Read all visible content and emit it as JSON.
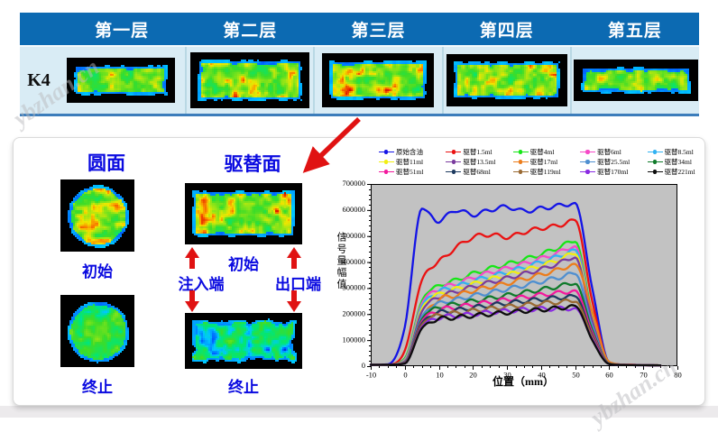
{
  "watermark": "ybzhan.cn",
  "table": {
    "row_label": "K4",
    "headers": [
      "第一层",
      "第二层",
      "第三层",
      "第四层",
      "第五层"
    ],
    "header_bg": "#0c6ab2",
    "body_bg": "#d9ecf5"
  },
  "panel": {
    "left": {
      "title": "圆面",
      "labels": [
        "初始",
        "终止"
      ]
    },
    "middle": {
      "title": "驱替面",
      "labels": [
        "初始",
        "终止"
      ],
      "inlet": "注入端",
      "outlet": "出口端"
    }
  },
  "accent_colors": {
    "header_blue": "#0c6ab2",
    "label_blue": "#0a0ae0",
    "arrow_red": "#e01212"
  },
  "heatmaps": {
    "layers": [
      {
        "shape": "rect",
        "seed": 11,
        "palette": "oil",
        "red": 0.85,
        "ragged": 1.5
      },
      {
        "shape": "rect",
        "seed": 22,
        "palette": "oil",
        "red": 1.0,
        "ragged": 1.5
      },
      {
        "shape": "rect",
        "seed": 33,
        "palette": "oil",
        "red": 1.0,
        "ragged": 1.5
      },
      {
        "shape": "rect",
        "seed": 44,
        "palette": "oil",
        "red": 0.95,
        "ragged": 1.5
      },
      {
        "shape": "rect",
        "seed": 55,
        "palette": "oil",
        "red": 0.8,
        "ragged": 2.5
      }
    ],
    "circle_start": {
      "shape": "circle",
      "seed": 66,
      "palette": "oil",
      "red": 1.0,
      "ragged": 1.2
    },
    "circle_end": {
      "shape": "circle",
      "seed": 77,
      "palette": "mixed",
      "red": 0.3,
      "ragged": 1.2
    },
    "face_start": {
      "shape": "rect",
      "seed": 88,
      "palette": "oil",
      "red": 1.0,
      "ragged": 1.5
    },
    "face_end": {
      "shape": "rect",
      "seed": 99,
      "palette": "water",
      "red": 0.0,
      "ragged": 5
    }
  },
  "chart_data": {
    "type": "line",
    "title": "",
    "xlabel": "位置（mm）",
    "ylabel": "信号量幅值",
    "xlim": [
      -10,
      80
    ],
    "ylim": [
      0,
      700000
    ],
    "xticks": [
      -10,
      0,
      10,
      20,
      30,
      40,
      50,
      60,
      70,
      80
    ],
    "yticks": [
      0,
      100000,
      200000,
      300000,
      400000,
      500000,
      600000,
      700000
    ],
    "plot_bg": "#c2c2c2",
    "grid": false,
    "legend_position": "top",
    "x": [
      -10,
      -5,
      0,
      5,
      10,
      15,
      20,
      25,
      30,
      35,
      40,
      45,
      50,
      55,
      60,
      65,
      70,
      75
    ],
    "series": [
      {
        "name": "原始含油",
        "color": "#1414e6",
        "values": [
          6000,
          7000,
          150000,
          605000,
          558000,
          600000,
          582000,
          600000,
          612000,
          596000,
          606000,
          616000,
          625000,
          300000,
          15000,
          6000,
          4000,
          3000
        ]
      },
      {
        "name": "驱替1.5ml",
        "color": "#ea1212",
        "values": [
          5000,
          6000,
          60000,
          330000,
          400000,
          455000,
          495000,
          505000,
          496000,
          515000,
          530000,
          540000,
          560000,
          250000,
          14000,
          6000,
          4000,
          3000
        ]
      },
      {
        "name": "驱替4ml",
        "color": "#17e617",
        "values": [
          5000,
          5500,
          30000,
          250000,
          308000,
          330000,
          355000,
          375000,
          392000,
          410000,
          430000,
          455000,
          480000,
          200000,
          12000,
          5000,
          4000,
          3000
        ]
      },
      {
        "name": "驱替6ml",
        "color": "#f649c8",
        "values": [
          5000,
          5500,
          25000,
          240000,
          296000,
          316000,
          340000,
          360000,
          376000,
          394000,
          414000,
          436000,
          460000,
          190000,
          12000,
          5000,
          4000,
          3000
        ]
      },
      {
        "name": "驱替8.5ml",
        "color": "#31b2f2",
        "values": [
          5000,
          5500,
          22000,
          230000,
          286000,
          306000,
          326000,
          345000,
          360000,
          380000,
          400000,
          421000,
          445000,
          185000,
          11000,
          5000,
          4000,
          3000
        ]
      },
      {
        "name": "驱替11ml",
        "color": "#f2ee11",
        "values": [
          5000,
          5500,
          20000,
          220000,
          276000,
          296000,
          315000,
          334000,
          350000,
          368000,
          386000,
          408000,
          432000,
          180000,
          11000,
          5000,
          4000,
          3000
        ]
      },
      {
        "name": "驱替13.5ml",
        "color": "#7a3b9e",
        "values": [
          5000,
          5500,
          18000,
          210000,
          266000,
          286000,
          305000,
          322000,
          338000,
          355000,
          372000,
          394000,
          418000,
          175000,
          11000,
          5000,
          4000,
          3000
        ]
      },
      {
        "name": "驱替17ml",
        "color": "#ec7d1c",
        "values": [
          5000,
          5500,
          12000,
          185000,
          255000,
          272000,
          290000,
          305000,
          318000,
          335000,
          352000,
          370000,
          390000,
          210000,
          16000,
          6000,
          4000,
          3000
        ]
      },
      {
        "name": "驱替25.5ml",
        "color": "#4f8fd0",
        "values": [
          5000,
          5500,
          15000,
          190000,
          240000,
          255000,
          270000,
          283000,
          296000,
          310000,
          325000,
          340000,
          355000,
          155000,
          10000,
          5000,
          4000,
          3000
        ]
      },
      {
        "name": "驱替34ml",
        "color": "#0f7a2a",
        "values": [
          5000,
          5500,
          14000,
          180000,
          226000,
          238000,
          250000,
          261000,
          272000,
          283000,
          294000,
          306000,
          318000,
          140000,
          10000,
          5000,
          4000,
          3000
        ]
      },
      {
        "name": "驱替51ml",
        "color": "#f3199d",
        "values": [
          5000,
          5500,
          13000,
          172000,
          215000,
          226000,
          237000,
          246000,
          256000,
          265000,
          274000,
          281000,
          289000,
          130000,
          9000,
          5000,
          4000,
          3000
        ]
      },
      {
        "name": "驱替68ml",
        "color": "#1d3a5f",
        "values": [
          5000,
          5500,
          12000,
          165000,
          205000,
          215000,
          225000,
          234000,
          242000,
          250000,
          257000,
          263000,
          268000,
          120000,
          9000,
          5000,
          4000,
          3000
        ]
      },
      {
        "name": "驱替119ml",
        "color": "#9a6a33",
        "values": [
          5000,
          5500,
          11000,
          158000,
          196000,
          204000,
          213000,
          221000,
          228000,
          235000,
          241000,
          246000,
          250000,
          115000,
          9000,
          5000,
          4000,
          3000
        ]
      },
      {
        "name": "驱替170ml",
        "color": "#8a2be2",
        "values": [
          5000,
          5500,
          10000,
          150000,
          186000,
          193000,
          200000,
          207000,
          212000,
          217000,
          220000,
          221000,
          222000,
          105000,
          8000,
          4000,
          3500,
          3000
        ]
      },
      {
        "name": "驱替221ml",
        "color": "#0d0d0d",
        "values": [
          5000,
          5500,
          10000,
          145000,
          180000,
          187000,
          194000,
          200000,
          206000,
          212000,
          217000,
          223000,
          230000,
          100000,
          8000,
          4000,
          3500,
          3000
        ]
      }
    ]
  }
}
